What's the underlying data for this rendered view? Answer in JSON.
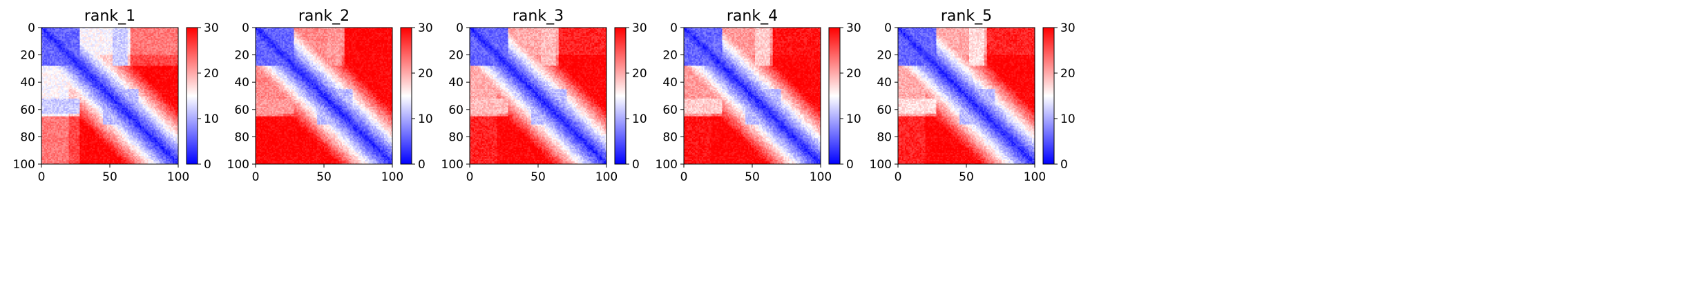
{
  "figure": {
    "colormap": {
      "low": "#0000ff",
      "mid": "#ffffff",
      "high": "#ff0000"
    },
    "colorbar": {
      "min": 0,
      "max": 30,
      "ticks": [
        "0",
        "10",
        "20",
        "30"
      ]
    }
  },
  "chart_data": [
    {
      "type": "heatmap",
      "title": "rank_1",
      "xlim": [
        0,
        100
      ],
      "ylim": [
        100,
        0
      ],
      "xticks": [
        "0",
        "50",
        "100"
      ],
      "yticks": [
        "0",
        "20",
        "40",
        "60",
        "80",
        "100"
      ],
      "clim": [
        0,
        30
      ],
      "grid": false,
      "features": {
        "upper_band_level": 15,
        "lower_block_level": 12
      }
    },
    {
      "type": "heatmap",
      "title": "rank_2",
      "xlim": [
        0,
        100
      ],
      "ylim": [
        100,
        0
      ],
      "xticks": [
        "0",
        "50",
        "100"
      ],
      "yticks": [
        "0",
        "20",
        "40",
        "60",
        "80",
        "100"
      ],
      "clim": [
        0,
        30
      ],
      "grid": false,
      "features": {
        "upper_band_level": 22,
        "lower_block_level": 21
      }
    },
    {
      "type": "heatmap",
      "title": "rank_3",
      "xlim": [
        0,
        100
      ],
      "ylim": [
        100,
        0
      ],
      "xticks": [
        "0",
        "50",
        "100"
      ],
      "yticks": [
        "0",
        "20",
        "40",
        "60",
        "80",
        "100"
      ],
      "clim": [
        0,
        30
      ],
      "grid": false,
      "features": {
        "upper_band_level": 20,
        "lower_block_level": 19
      }
    },
    {
      "type": "heatmap",
      "title": "rank_4",
      "xlim": [
        0,
        100
      ],
      "ylim": [
        100,
        0
      ],
      "xticks": [
        "0",
        "50",
        "100"
      ],
      "yticks": [
        "0",
        "20",
        "40",
        "60",
        "80",
        "100"
      ],
      "clim": [
        0,
        30
      ],
      "grid": false,
      "features": {
        "upper_band_level": 21,
        "lower_block_level": 18
      }
    },
    {
      "type": "heatmap",
      "title": "rank_5",
      "xlim": [
        0,
        100
      ],
      "ylim": [
        100,
        0
      ],
      "xticks": [
        "0",
        "50",
        "100"
      ],
      "yticks": [
        "0",
        "20",
        "40",
        "60",
        "80",
        "100"
      ],
      "clim": [
        0,
        30
      ],
      "grid": false,
      "features": {
        "upper_band_level": 20,
        "lower_block_level": 17
      }
    }
  ]
}
